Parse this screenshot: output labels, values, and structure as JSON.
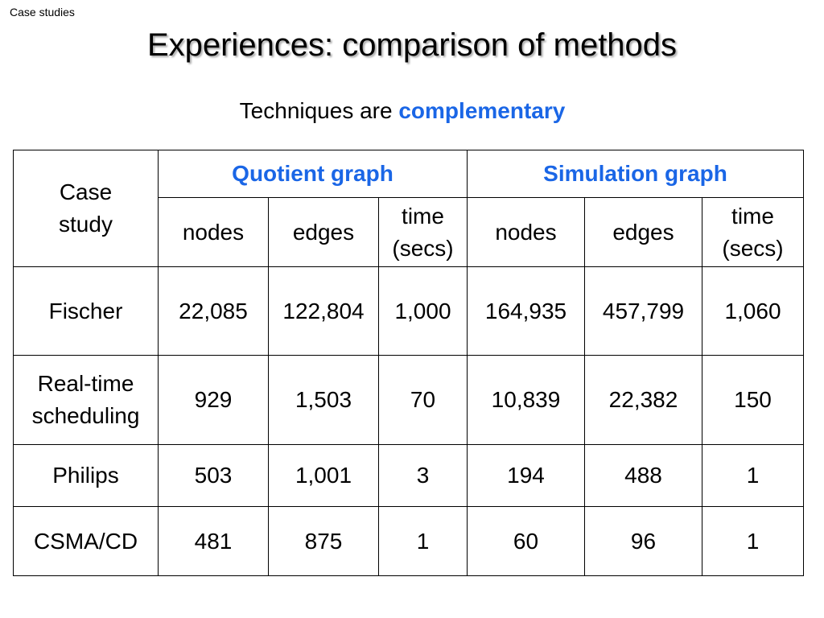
{
  "header": {
    "section_label": "Case studies",
    "title": "Experiences: comparison of methods",
    "subtitle_prefix": "Techniques are ",
    "subtitle_emphasis": "complementary"
  },
  "table": {
    "case_study_header": [
      "Case",
      "study"
    ],
    "groups": [
      "Quotient graph",
      "Simulation graph"
    ],
    "subcolumns": {
      "nodes": "nodes",
      "edges": "edges",
      "time": [
        "time",
        "(secs)"
      ]
    },
    "rows": [
      {
        "name": [
          "Fischer"
        ],
        "quotient": [
          "22,085",
          "122,804",
          "1,000"
        ],
        "simulation": [
          "164,935",
          "457,799",
          "1,060"
        ]
      },
      {
        "name": [
          "Real-time",
          "scheduling"
        ],
        "quotient": [
          "929",
          "1,503",
          "70"
        ],
        "simulation": [
          "10,839",
          "22,382",
          "150"
        ]
      },
      {
        "name": [
          "Philips"
        ],
        "quotient": [
          "503",
          "1,001",
          "3"
        ],
        "simulation": [
          "194",
          "488",
          "1"
        ]
      },
      {
        "name": [
          "CSMA/CD"
        ],
        "quotient": [
          "481",
          "875",
          "1"
        ],
        "simulation": [
          "60",
          "96",
          "1"
        ]
      }
    ]
  },
  "colors": {
    "accent": "#1a66e6",
    "text": "#000000",
    "background": "#ffffff"
  }
}
